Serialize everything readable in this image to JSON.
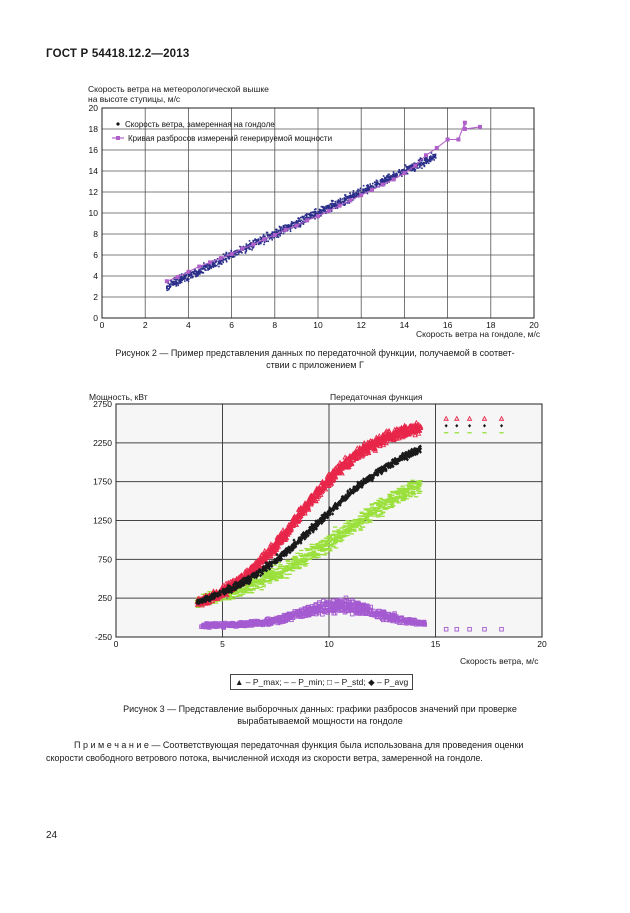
{
  "header": "ГОСТ Р 54418.12.2—2013",
  "fig2": {
    "ylabel_line1": "Скорость ветра на метеорологической вышке",
    "ylabel_line2": "на высоте ступицы, м/с",
    "xlabel": "Скорость ветра на гондоле, м/с",
    "legend": [
      "Скорость ветра, замеренная на гондоле",
      "Кривая разбросов измерений генерируемой мощности"
    ],
    "caption_line1": "Рисунок 2 — Пример представления данных по передаточной функции, получаемой в соответ-",
    "caption_line2": "ствии с приложением Г"
  },
  "fig3": {
    "ylabel": "Мощность, кВт",
    "title": "Передаточная функция",
    "xlabel": "Скорость ветра, м/с",
    "legend_text": "▲ – P_max;  – – P_min;  □ – P_std;  ◆ – P_avg",
    "caption_line1": "Рисунок 3 — Представление выборочных данных: графики разбросов значений при проверке",
    "caption_line2": "вырабатываемой мощности на гондоле"
  },
  "note_line1": "П р и м е ч а н и е — Соответствующая передаточная функция была использована для проведения оценки",
  "note_line2": "скорости свободного ветрового потока, вычисленной исходя из скорости ветра, замеренной на гондоле.",
  "page_number": "24",
  "chart_data": [
    {
      "type": "scatter",
      "xlabel": "Скорость ветра на гондоле, м/с",
      "ylabel": "Скорость ветра на метеорологической вышке на высоте ступицы, м/с",
      "xlim": [
        0,
        20
      ],
      "ylim": [
        0,
        20
      ],
      "xticks": [
        0,
        2,
        4,
        6,
        8,
        10,
        12,
        14,
        16,
        18,
        20
      ],
      "yticks": [
        0,
        2,
        4,
        6,
        8,
        10,
        12,
        14,
        16,
        18,
        20
      ],
      "grid": true,
      "legend_position": "top-left",
      "colors": {
        "scatter": "#2b2f8a",
        "curve": "#b061c9"
      },
      "series": [
        {
          "name": "Скорость ветра, замеренная на гондоле",
          "kind": "scatter-band",
          "x_range": [
            3,
            15.5
          ],
          "slope": 1.0,
          "intercept": 0.0,
          "spread": 0.6
        },
        {
          "name": "Кривая разбросов измерений генерируемой мощности",
          "kind": "line",
          "x": [
            3.0,
            3.5,
            4.0,
            4.5,
            5.0,
            5.5,
            6.0,
            6.5,
            7.0,
            7.5,
            8.0,
            8.5,
            9.0,
            9.5,
            10.0,
            10.5,
            11.0,
            11.5,
            12.0,
            12.5,
            13.0,
            13.5,
            14.0,
            14.5,
            15.0,
            15.5,
            16.0,
            16.5,
            16.8,
            16.8,
            17.5
          ],
          "y": [
            3.5,
            3.9,
            4.4,
            4.9,
            5.3,
            5.7,
            6.1,
            6.6,
            7.0,
            7.5,
            7.9,
            8.4,
            8.8,
            9.3,
            9.7,
            10.2,
            10.7,
            11.2,
            11.7,
            12.2,
            12.7,
            13.2,
            13.8,
            14.5,
            15.5,
            16.2,
            17.0,
            17.0,
            18.6,
            18.0,
            18.2
          ]
        }
      ]
    },
    {
      "type": "scatter",
      "title": "Передаточная функция",
      "xlabel": "Скорость ветра, м/с",
      "ylabel": "Мощность, кВт",
      "xlim": [
        0,
        20
      ],
      "ylim": [
        -250,
        2750
      ],
      "xticks": [
        0,
        5,
        10,
        15,
        20
      ],
      "yticks": [
        -250,
        250,
        750,
        1250,
        1750,
        2250,
        2750
      ],
      "grid": true,
      "legend_position": "bottom",
      "series": [
        {
          "name": "P_max",
          "marker": "triangle",
          "color": "#e8264a",
          "x0": 5.0,
          "steep": 1.1,
          "shift": -1.0
        },
        {
          "name": "P_avg",
          "marker": "diamond",
          "color": "#1a1a1a",
          "x0": 5.0,
          "steep": 0.85,
          "shift": 0.0
        },
        {
          "name": "P_min",
          "marker": "dash",
          "color": "#9be03c",
          "x0": 5.0,
          "steep": 0.65,
          "shift": 1.6
        },
        {
          "name": "P_std",
          "marker": "square",
          "color": "#a45ad0",
          "x0": 4.5,
          "peak_x": 10.5,
          "peak_y": 250
        }
      ],
      "rated_power": 2450,
      "max_power": 2550,
      "min_power_rated": 2350,
      "bin_points_x": [
        15.5,
        16.0,
        16.6,
        17.3,
        18.1
      ],
      "bin_points": {
        "P_max": 2560,
        "P_avg": 2470,
        "P_min": 2380,
        "P_std": -150
      }
    }
  ]
}
